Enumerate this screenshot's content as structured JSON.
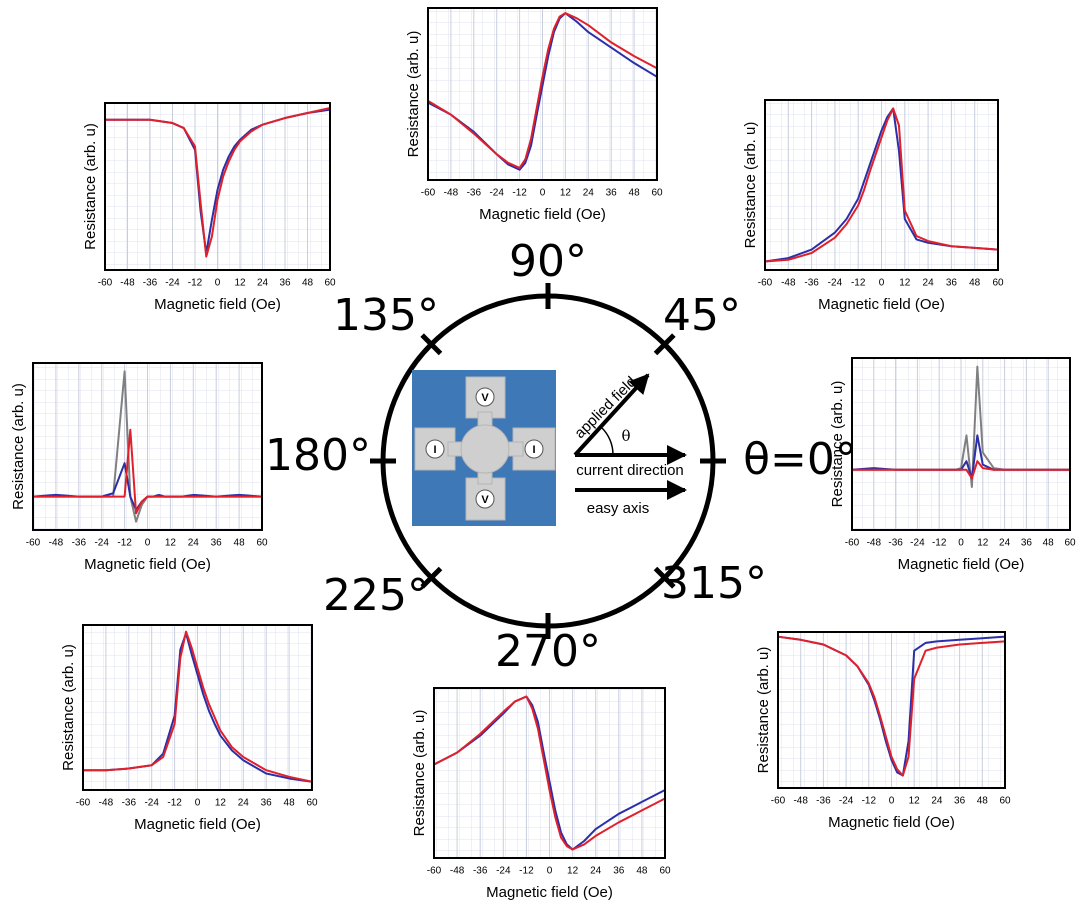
{
  "chart_data": [
    {
      "type": "line",
      "xlabel": "Magnetic field (Oe)",
      "ylabel": "Resistance (arb. u)",
      "x": [
        -60,
        -48,
        -36,
        -24,
        -18,
        -12,
        -9,
        -6,
        -3,
        0,
        3,
        6,
        9,
        12,
        18,
        24,
        36,
        48,
        60
      ],
      "series": [
        {
          "color": "#2b2fa8",
          "values": [
            0.9,
            0.9,
            0.9,
            0.88,
            0.85,
            0.72,
            0.35,
            0.1,
            0.3,
            0.48,
            0.6,
            0.68,
            0.74,
            0.78,
            0.84,
            0.87,
            0.91,
            0.94,
            0.96
          ]
        },
        {
          "color": "#e0202a",
          "values": [
            0.9,
            0.9,
            0.9,
            0.88,
            0.85,
            0.74,
            0.4,
            0.08,
            0.2,
            0.42,
            0.56,
            0.65,
            0.72,
            0.77,
            0.83,
            0.87,
            0.91,
            0.94,
            0.97
          ]
        }
      ],
      "xlim": [
        -60,
        60
      ],
      "xticks": [
        -60,
        -48,
        -36,
        -24,
        -12,
        0,
        12,
        24,
        36,
        48,
        60
      ],
      "ylim": [
        0,
        1
      ],
      "grid": true
    },
    {
      "type": "line",
      "xlabel": "Magnetic field (Oe)",
      "ylabel": "Resistance (arb. u)",
      "x": [
        -60,
        -48,
        -36,
        -24,
        -18,
        -12,
        -9,
        -6,
        -3,
        0,
        3,
        6,
        9,
        12,
        18,
        24,
        36,
        48,
        60
      ],
      "series": [
        {
          "color": "#2b2fa8",
          "values": [
            0.45,
            0.38,
            0.28,
            0.15,
            0.09,
            0.06,
            0.1,
            0.2,
            0.38,
            0.55,
            0.72,
            0.86,
            0.94,
            0.97,
            0.92,
            0.86,
            0.77,
            0.68,
            0.6
          ]
        },
        {
          "color": "#e0202a",
          "values": [
            0.46,
            0.38,
            0.27,
            0.15,
            0.1,
            0.07,
            0.12,
            0.24,
            0.42,
            0.6,
            0.76,
            0.88,
            0.95,
            0.97,
            0.94,
            0.9,
            0.8,
            0.72,
            0.65
          ]
        }
      ],
      "xlim": [
        -60,
        60
      ],
      "xticks": [
        -60,
        -48,
        -36,
        -24,
        -12,
        0,
        12,
        24,
        36,
        48,
        60
      ],
      "ylim": [
        0,
        1
      ],
      "grid": true
    },
    {
      "type": "line",
      "xlabel": "Magnetic field (Oe)",
      "ylabel": "Resistance (arb. u)",
      "x": [
        -60,
        -48,
        -36,
        -24,
        -18,
        -12,
        -9,
        -6,
        -3,
        0,
        3,
        6,
        9,
        12,
        18,
        24,
        36,
        48,
        60
      ],
      "series": [
        {
          "color": "#2b2fa8",
          "values": [
            0.05,
            0.07,
            0.12,
            0.22,
            0.3,
            0.42,
            0.52,
            0.62,
            0.72,
            0.82,
            0.9,
            0.95,
            0.7,
            0.3,
            0.18,
            0.16,
            0.14,
            0.13,
            0.12
          ]
        },
        {
          "color": "#e0202a",
          "values": [
            0.05,
            0.06,
            0.1,
            0.19,
            0.27,
            0.38,
            0.47,
            0.58,
            0.68,
            0.78,
            0.88,
            0.95,
            0.85,
            0.35,
            0.2,
            0.17,
            0.14,
            0.13,
            0.12
          ]
        }
      ],
      "xlim": [
        -60,
        60
      ],
      "xticks": [
        -60,
        -48,
        -36,
        -24,
        -12,
        0,
        12,
        24,
        36,
        48,
        60
      ],
      "ylim": [
        0,
        1
      ],
      "grid": true
    },
    {
      "type": "line",
      "xlabel": "Magnetic field (Oe)",
      "ylabel": "Resistance (arb. u)",
      "x": [
        -60,
        -48,
        -36,
        -24,
        -18,
        -12,
        -9,
        -6,
        -3,
        0,
        3,
        6,
        9,
        12,
        18,
        24,
        36,
        48,
        60
      ],
      "series": [
        {
          "color": "#808080",
          "values": [
            0.2,
            0.2,
            0.2,
            0.2,
            0.2,
            0.95,
            0.2,
            0.05,
            0.15,
            0.2,
            0.2,
            0.2,
            0.2,
            0.2,
            0.2,
            0.2,
            0.2,
            0.2,
            0.2
          ]
        },
        {
          "color": "#2b2fa8",
          "values": [
            0.2,
            0.21,
            0.2,
            0.2,
            0.22,
            0.4,
            0.2,
            0.12,
            0.17,
            0.2,
            0.2,
            0.21,
            0.2,
            0.2,
            0.2,
            0.21,
            0.2,
            0.21,
            0.2
          ]
        },
        {
          "color": "#e0202a",
          "values": [
            0.2,
            0.2,
            0.2,
            0.2,
            0.2,
            0.2,
            0.6,
            0.1,
            0.17,
            0.2,
            0.2,
            0.2,
            0.2,
            0.2,
            0.2,
            0.2,
            0.2,
            0.2,
            0.2
          ]
        }
      ],
      "xlim": [
        -60,
        60
      ],
      "xticks": [
        -60,
        -48,
        -36,
        -24,
        -12,
        0,
        12,
        24,
        36,
        48,
        60
      ],
      "ylim": [
        0,
        1
      ],
      "grid": true
    },
    {
      "type": "line",
      "xlabel": "Magnetic field (Oe)",
      "ylabel": "Resistance (arb. u)",
      "x": [
        -60,
        -48,
        -36,
        -24,
        -18,
        -12,
        -9,
        -6,
        -3,
        0,
        3,
        6,
        9,
        12,
        18,
        24,
        36,
        48,
        60
      ],
      "series": [
        {
          "color": "#808080",
          "values": [
            0.35,
            0.35,
            0.35,
            0.35,
            0.35,
            0.35,
            0.35,
            0.35,
            0.35,
            0.36,
            0.55,
            0.25,
            0.95,
            0.45,
            0.36,
            0.35,
            0.35,
            0.35,
            0.35
          ]
        },
        {
          "color": "#2b2fa8",
          "values": [
            0.35,
            0.36,
            0.35,
            0.35,
            0.35,
            0.35,
            0.35,
            0.35,
            0.35,
            0.35,
            0.4,
            0.3,
            0.55,
            0.38,
            0.35,
            0.35,
            0.35,
            0.35,
            0.35
          ]
        },
        {
          "color": "#e0202a",
          "values": [
            0.35,
            0.35,
            0.35,
            0.35,
            0.35,
            0.35,
            0.35,
            0.35,
            0.35,
            0.35,
            0.35,
            0.3,
            0.4,
            0.36,
            0.35,
            0.35,
            0.35,
            0.35,
            0.35
          ]
        }
      ],
      "xlim": [
        -60,
        60
      ],
      "xticks": [
        -60,
        -48,
        -36,
        -24,
        -12,
        0,
        12,
        24,
        36,
        48,
        60
      ],
      "ylim": [
        0,
        1
      ],
      "grid": true
    },
    {
      "type": "line",
      "xlabel": "Magnetic field (Oe)",
      "ylabel": "Resistance (arb. u)",
      "x": [
        -60,
        -48,
        -36,
        -24,
        -18,
        -12,
        -9,
        -6,
        -3,
        0,
        3,
        6,
        9,
        12,
        18,
        24,
        36,
        48,
        60
      ],
      "series": [
        {
          "color": "#2b2fa8",
          "values": [
            0.12,
            0.12,
            0.13,
            0.15,
            0.22,
            0.45,
            0.85,
            0.95,
            0.82,
            0.7,
            0.58,
            0.48,
            0.4,
            0.33,
            0.24,
            0.18,
            0.1,
            0.07,
            0.05
          ]
        },
        {
          "color": "#e0202a",
          "values": [
            0.12,
            0.12,
            0.13,
            0.15,
            0.2,
            0.4,
            0.8,
            0.96,
            0.86,
            0.74,
            0.62,
            0.52,
            0.44,
            0.36,
            0.26,
            0.2,
            0.12,
            0.08,
            0.05
          ]
        }
      ],
      "xlim": [
        -60,
        60
      ],
      "xticks": [
        -60,
        -48,
        -36,
        -24,
        -12,
        0,
        12,
        24,
        36,
        48,
        60
      ],
      "ylim": [
        0,
        1
      ],
      "grid": true
    },
    {
      "type": "line",
      "xlabel": "Magnetic field (Oe)",
      "ylabel": "Resistance (arb. u)",
      "x": [
        -60,
        -48,
        -36,
        -24,
        -18,
        -12,
        -9,
        -6,
        -3,
        0,
        3,
        6,
        9,
        12,
        18,
        24,
        36,
        48,
        60
      ],
      "series": [
        {
          "color": "#2b2fa8",
          "values": [
            0.55,
            0.62,
            0.72,
            0.85,
            0.92,
            0.95,
            0.9,
            0.8,
            0.62,
            0.45,
            0.28,
            0.15,
            0.08,
            0.05,
            0.1,
            0.17,
            0.26,
            0.33,
            0.4
          ]
        },
        {
          "color": "#e0202a",
          "values": [
            0.55,
            0.62,
            0.73,
            0.86,
            0.92,
            0.95,
            0.88,
            0.76,
            0.58,
            0.4,
            0.24,
            0.12,
            0.07,
            0.05,
            0.08,
            0.13,
            0.21,
            0.28,
            0.35
          ]
        }
      ],
      "xlim": [
        -60,
        60
      ],
      "xticks": [
        -60,
        -48,
        -36,
        -24,
        -12,
        0,
        12,
        24,
        36,
        48,
        60
      ],
      "ylim": [
        0,
        1
      ],
      "grid": true
    },
    {
      "type": "line",
      "xlabel": "Magnetic field (Oe)",
      "ylabel": "Resistance (arb. u)",
      "x": [
        -60,
        -48,
        -36,
        -24,
        -18,
        -12,
        -9,
        -6,
        -3,
        0,
        3,
        6,
        9,
        12,
        18,
        24,
        36,
        48,
        60
      ],
      "series": [
        {
          "color": "#2b2fa8",
          "values": [
            0.97,
            0.95,
            0.92,
            0.85,
            0.78,
            0.66,
            0.56,
            0.44,
            0.3,
            0.18,
            0.1,
            0.08,
            0.3,
            0.88,
            0.93,
            0.94,
            0.95,
            0.96,
            0.97
          ]
        },
        {
          "color": "#e0202a",
          "values": [
            0.97,
            0.95,
            0.92,
            0.85,
            0.78,
            0.67,
            0.58,
            0.46,
            0.33,
            0.2,
            0.12,
            0.08,
            0.2,
            0.7,
            0.88,
            0.9,
            0.92,
            0.93,
            0.94
          ]
        }
      ],
      "xlim": [
        -60,
        60
      ],
      "xticks": [
        -60,
        -48,
        -36,
        -24,
        -12,
        0,
        12,
        24,
        36,
        48,
        60
      ],
      "ylim": [
        0,
        1
      ],
      "grid": true
    }
  ],
  "diagram": {
    "angle_labels": [
      "90°",
      "45°",
      "135°",
      "180°",
      "θ=0°",
      "225°",
      "270°",
      "315°"
    ],
    "pad_labels": [
      "V",
      "I",
      "I",
      "V"
    ],
    "arrow_labels": [
      "applied field",
      "θ",
      "current direction",
      "easy axis"
    ]
  }
}
